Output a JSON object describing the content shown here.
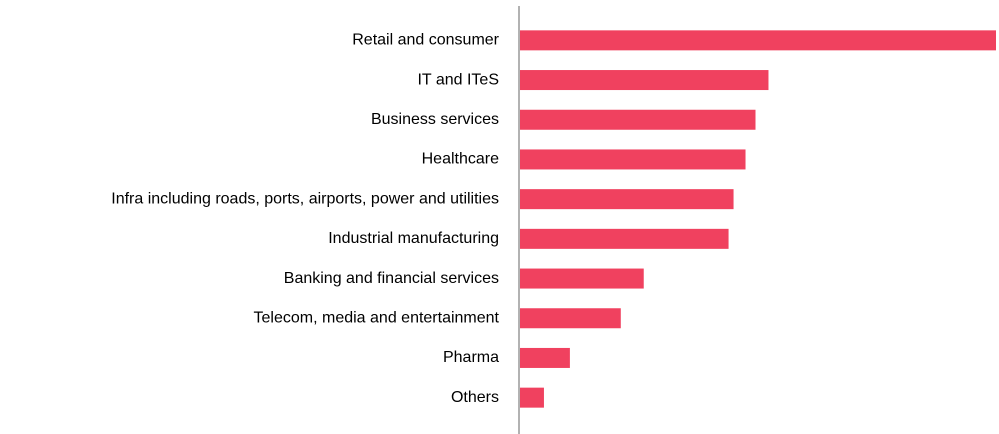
{
  "chart_data": {
    "type": "bar",
    "orientation": "horizontal",
    "categories": [
      "Retail and consumer",
      "IT and ITeS",
      "Business services",
      "Healthcare",
      "Infra including roads, ports, airports, power and utilities",
      "Industrial manufacturing",
      "Banking and  financial services",
      "Telecom,  media and entertainment",
      "Pharma",
      "Others"
    ],
    "values": [
      477,
      249,
      236,
      226,
      214,
      209,
      124,
      101,
      50,
      24
    ],
    "color": "#f0415f"
  }
}
